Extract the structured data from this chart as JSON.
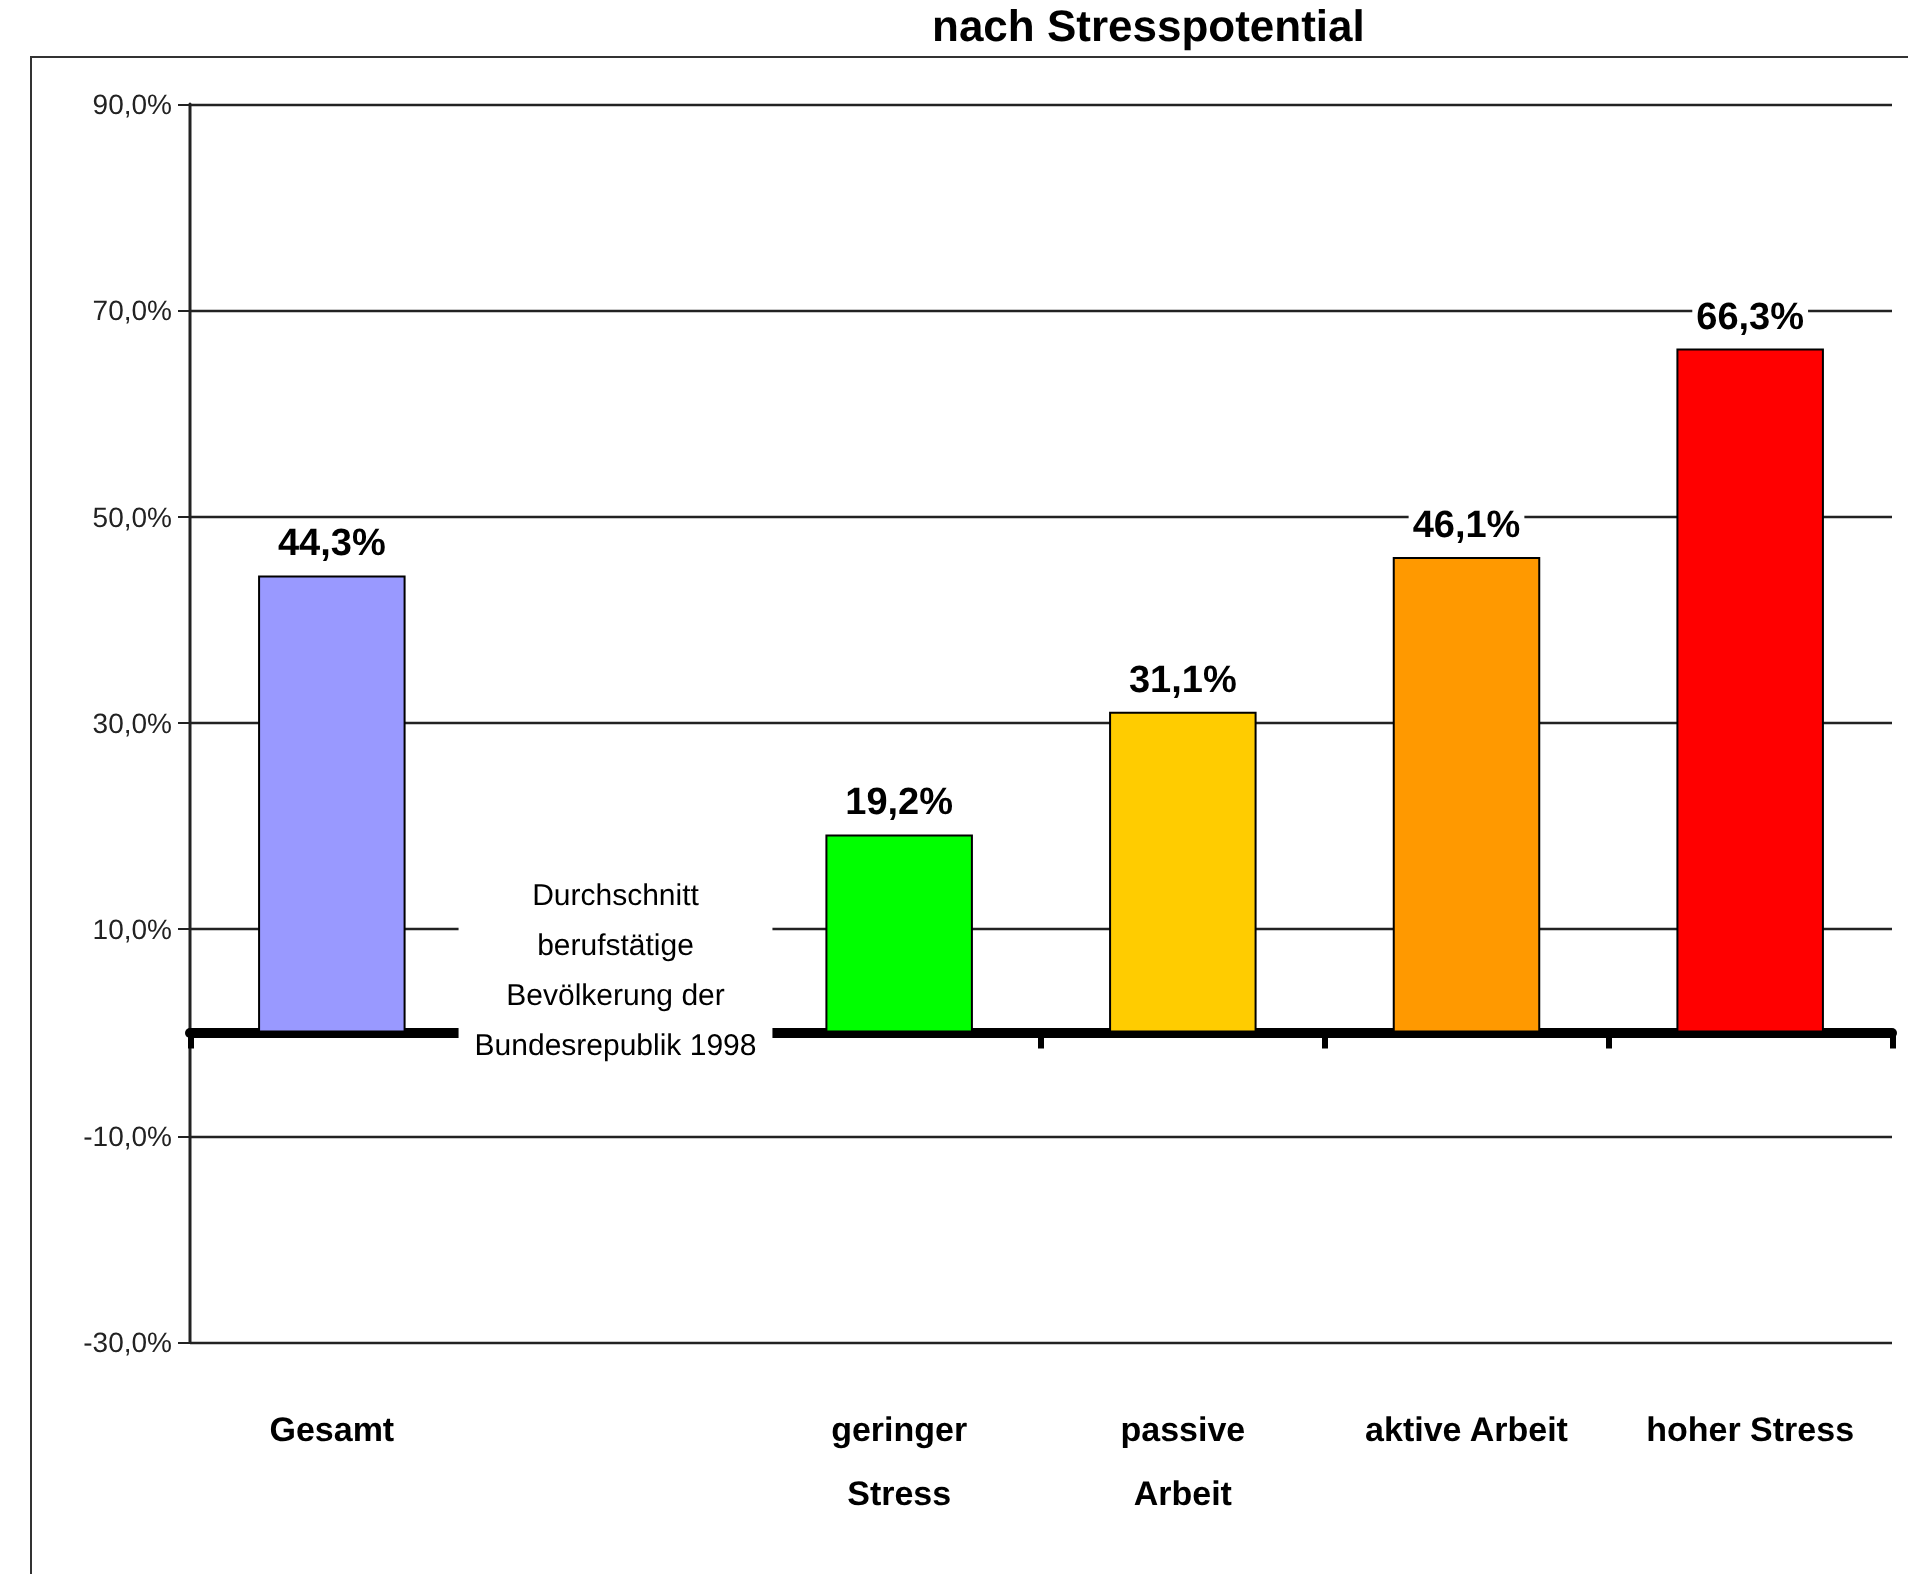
{
  "chart_data": {
    "type": "bar",
    "title": "nach Stresspotential",
    "categories": [
      "Gesamt",
      null,
      "geringer\nStress",
      "passive\nArbeit",
      "aktive Arbeit",
      "hoher Stress"
    ],
    "values": [
      44.3,
      null,
      19.2,
      31.1,
      46.1,
      66.3
    ],
    "colors": [
      "#9999ff",
      null,
      "#00ff00",
      "#ffcc00",
      "#ff9900",
      "#ff0000"
    ],
    "value_labels": [
      "44,3%",
      null,
      "19,2%",
      "31,1%",
      "46,1%",
      "66,3%"
    ],
    "ylim": [
      -30,
      90
    ],
    "yticks": [
      {
        "value": -30,
        "label": "-30,0%"
      },
      {
        "value": -10,
        "label": "-10,0%"
      },
      {
        "value": 10,
        "label": "10,0%"
      },
      {
        "value": 30,
        "label": "30,0%"
      },
      {
        "value": 50,
        "label": "50,0%"
      },
      {
        "value": 70,
        "label": "70,0%"
      },
      {
        "value": 90,
        "label": "90,0%"
      }
    ],
    "grid": "y",
    "annotations": [
      "Durchschnitt\nberufstätige\nBevölkerung der\nBundesrepublik 1998"
    ]
  }
}
